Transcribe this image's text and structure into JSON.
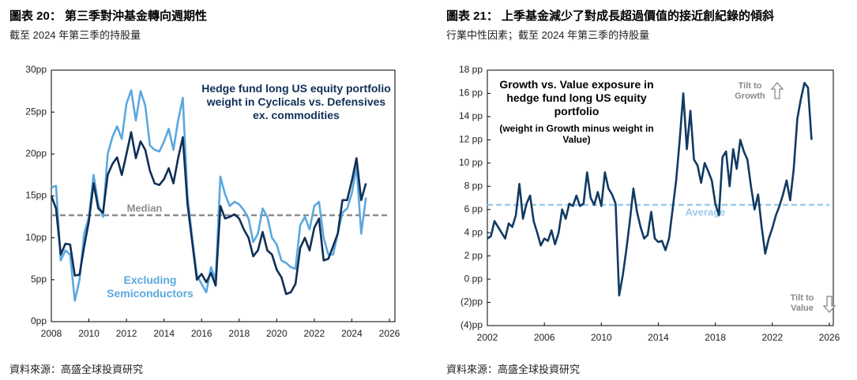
{
  "chart_data": [
    {
      "type": "line",
      "title": "圖表 20： 第三季對沖基金轉向週期性",
      "subtitle": "截至 2024 年第三季的持股量",
      "source": "資料來源：高盛全球投資研究",
      "x": [
        2008,
        2008.25,
        2008.5,
        2008.75,
        2009,
        2009.25,
        2009.5,
        2009.75,
        2010,
        2010.25,
        2010.5,
        2010.75,
        2011,
        2011.25,
        2011.5,
        2011.75,
        2012,
        2012.25,
        2012.5,
        2012.75,
        2013,
        2013.25,
        2013.5,
        2013.75,
        2014,
        2014.25,
        2014.5,
        2014.75,
        2015,
        2015.25,
        2015.5,
        2015.75,
        2016,
        2016.25,
        2016.5,
        2016.75,
        2017,
        2017.25,
        2017.5,
        2017.75,
        2018,
        2018.25,
        2018.5,
        2018.75,
        2019,
        2019.25,
        2019.5,
        2019.75,
        2020,
        2020.25,
        2020.5,
        2020.75,
        2021,
        2021.25,
        2021.5,
        2021.75,
        2022,
        2022.25,
        2022.5,
        2022.75,
        2023,
        2023.25,
        2023.5,
        2023.75,
        2024,
        2024.25,
        2024.5,
        2024.75
      ],
      "series": [
        {
          "name": "Hedge fund long US equity portfolio weight in Cyclicals vs. Defensives ex. commodities",
          "color": "#0f2f57",
          "values": [
            15,
            13.5,
            8,
            9.3,
            9.2,
            5.5,
            5.6,
            9,
            12,
            16.5,
            13.5,
            13,
            17.5,
            18.8,
            19.6,
            17.5,
            20,
            22.6,
            19.5,
            21.5,
            20.5,
            18,
            16.5,
            16.3,
            17,
            18.3,
            16.5,
            19.5,
            22,
            14,
            9.5,
            5,
            5.7,
            4.7,
            5.8,
            4.3,
            13.8,
            12.3,
            12.5,
            12.8,
            12.3,
            11,
            10,
            7.8,
            8.5,
            10.7,
            8.5,
            8,
            6.2,
            5.3,
            3.3,
            3.5,
            4.5,
            8.8,
            10,
            8.5,
            11.2,
            12.3,
            7.3,
            7.5,
            9,
            10.5,
            14.5,
            14.5,
            16.8,
            19.5,
            14.5,
            16.5
          ]
        },
        {
          "name": "Excluding Semiconductors",
          "color": "#5ba8de",
          "values": [
            16,
            16.2,
            7.3,
            8.5,
            8,
            2.5,
            5,
            10.5,
            12.5,
            17.5,
            14,
            12.5,
            20,
            22,
            23.3,
            21.8,
            26,
            27.6,
            24,
            27.5,
            25.8,
            21,
            20.5,
            20.3,
            21.5,
            23,
            20.5,
            24,
            26.7,
            15,
            10,
            5.5,
            4.5,
            3.5,
            6.5,
            5,
            17.3,
            15.2,
            13.8,
            14.3,
            14,
            13.3,
            12.3,
            9.5,
            10.5,
            13.5,
            12.5,
            10,
            9.2,
            7.3,
            7,
            6.5,
            6.3,
            11.5,
            12.5,
            11,
            13.8,
            14.3,
            10,
            8,
            8,
            10.5,
            13,
            13.5,
            15.3,
            18.5,
            10.5,
            14.8
          ]
        }
      ],
      "reference_line": {
        "label": "Median",
        "value": 12.7,
        "color": "#8c8c8c"
      },
      "xlim": [
        2008,
        2026
      ],
      "xticks": [
        2008,
        2010,
        2012,
        2014,
        2016,
        2018,
        2020,
        2022,
        2024,
        2026
      ],
      "ylim": [
        0,
        30
      ],
      "yticks": [
        {
          "value": 0,
          "label": "0pp"
        },
        {
          "value": 5,
          "label": "5pp"
        },
        {
          "value": 10,
          "label": "10pp"
        },
        {
          "value": 15,
          "label": "15pp"
        },
        {
          "value": 20,
          "label": "20pp"
        },
        {
          "value": 25,
          "label": "25pp"
        },
        {
          "value": 30,
          "label": "30pp"
        }
      ]
    },
    {
      "type": "line",
      "title": "圖表 21： 上季基金減少了對成長超過價值的接近創紀錄的傾斜",
      "subtitle": "行業中性因素；截至 2024 年第三季的持股量",
      "source": "資料來源：高盛全球投資研究",
      "x": [
        2002,
        2002.25,
        2002.5,
        2002.75,
        2003,
        2003.25,
        2003.5,
        2003.75,
        2004,
        2004.25,
        2004.5,
        2004.75,
        2005,
        2005.25,
        2005.5,
        2005.75,
        2006,
        2006.25,
        2006.5,
        2006.75,
        2007,
        2007.25,
        2007.5,
        2007.75,
        2008,
        2008.25,
        2008.5,
        2008.75,
        2009,
        2009.25,
        2009.5,
        2009.75,
        2010,
        2010.25,
        2010.5,
        2010.75,
        2011,
        2011.25,
        2011.5,
        2011.75,
        2012,
        2012.25,
        2012.5,
        2012.75,
        2013,
        2013.25,
        2013.5,
        2013.75,
        2014,
        2014.25,
        2014.5,
        2014.75,
        2015,
        2015.25,
        2015.5,
        2015.75,
        2016,
        2016.25,
        2016.5,
        2016.75,
        2017,
        2017.25,
        2017.5,
        2017.75,
        2018,
        2018.25,
        2018.5,
        2018.75,
        2019,
        2019.25,
        2019.5,
        2019.75,
        2020,
        2020.25,
        2020.5,
        2020.75,
        2021,
        2021.25,
        2021.5,
        2021.75,
        2022,
        2022.25,
        2022.5,
        2022.75,
        2023,
        2023.25,
        2023.5,
        2023.75,
        2024,
        2024.25,
        2024.5,
        2024.75
      ],
      "series": [
        {
          "name": "Growth vs. Value exposure in hedge fund long US equity portfolio",
          "color": "#123a63",
          "values": [
            3.5,
            3.7,
            5,
            4.5,
            4,
            3.5,
            4.8,
            4.5,
            5.5,
            8.2,
            5.2,
            6.5,
            7.2,
            5,
            4,
            2.9,
            3.5,
            3.3,
            4.2,
            3,
            4,
            6,
            5.2,
            6.5,
            6.3,
            7.2,
            6.3,
            6.5,
            9.2,
            7,
            6.4,
            7.5,
            6.3,
            9.2,
            7.8,
            7.3,
            6.5,
            -1.4,
            0.3,
            2.5,
            5,
            7.8,
            5.8,
            4.5,
            3.5,
            3.8,
            5.8,
            3.5,
            3.2,
            3.3,
            2.5,
            3.5,
            6,
            8.5,
            12,
            16,
            11.2,
            14.5,
            10.3,
            9.8,
            8.3,
            10,
            9.3,
            8.5,
            6.5,
            5.5,
            10.5,
            11,
            8,
            11.2,
            9.5,
            12,
            11,
            10.3,
            8,
            6,
            7.3,
            4.5,
            2.2,
            3.5,
            4.4,
            5.5,
            6.3,
            7.3,
            8.5,
            6.8,
            9.5,
            13.8,
            15.5,
            16.9,
            16.5,
            12
          ]
        }
      ],
      "note": "(weight in Growth minus weight in Value)",
      "reference_line": {
        "label": "Average",
        "value": 6.4,
        "color": "#9dcbea"
      },
      "annotations": [
        "Tilt to Growth",
        "Tilt to Value"
      ],
      "xlim": [
        2002,
        2026
      ],
      "xticks": [
        2002,
        2006,
        2010,
        2014,
        2018,
        2022,
        2026
      ],
      "ylim": [
        -4,
        18
      ],
      "yticks": [
        {
          "value": -4,
          "label": "(4)pp"
        },
        {
          "value": -2,
          "label": "(2)pp"
        },
        {
          "value": 0,
          "label": "0 pp"
        },
        {
          "value": 2,
          "label": "2 pp"
        },
        {
          "value": 4,
          "label": "4 pp"
        },
        {
          "value": 6,
          "label": "6 pp"
        },
        {
          "value": 8,
          "label": "8 pp"
        },
        {
          "value": 10,
          "label": "10 pp"
        },
        {
          "value": 12,
          "label": "12 pp"
        },
        {
          "value": 14,
          "label": "14 pp"
        },
        {
          "value": 16,
          "label": "16 pp"
        },
        {
          "value": 18,
          "label": "18 pp"
        }
      ]
    }
  ]
}
